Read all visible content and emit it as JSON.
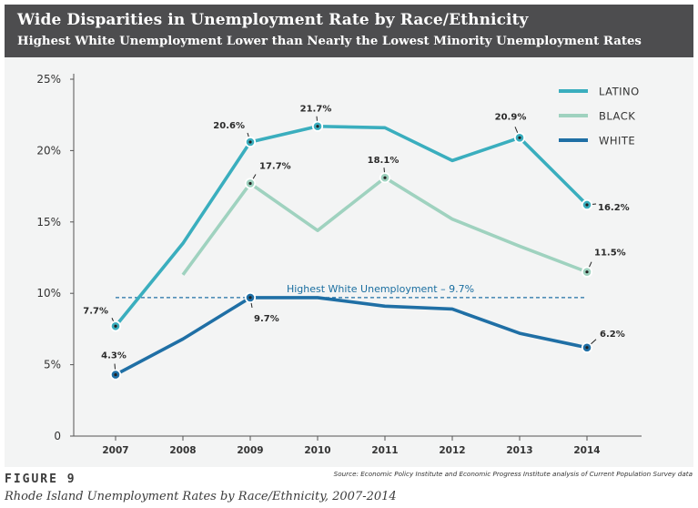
{
  "header": {
    "title": "Wide Disparities in Unemployment Rate by Race/Ethnicity",
    "subtitle": "Highest White Unemployment Lower than Nearly the Lowest Minority Unemployment Rates"
  },
  "source": "Source: Economic Policy Institute and Economic Progress Institute analysis of Current Population Survey data",
  "figure": {
    "label": "FIGURE 9",
    "caption": "Rhode Island Unemployment Rates by Race/Ethnicity, 2007-2014"
  },
  "chart_data": {
    "type": "line",
    "categories": [
      "2007",
      "2008",
      "2009",
      "2010",
      "2011",
      "2012",
      "2013",
      "2014"
    ],
    "ylim": [
      0,
      25
    ],
    "yticks": [
      0,
      5,
      10,
      15,
      20,
      25
    ],
    "ytick_labels": [
      "0",
      "5%",
      "10%",
      "15%",
      "20%",
      "25%"
    ],
    "grid": false,
    "legend_position": "top-right",
    "series": [
      {
        "name": "LATINO",
        "color": "#3aaebe",
        "values": [
          7.7,
          13.5,
          20.6,
          21.7,
          21.6,
          19.3,
          20.9,
          16.2
        ],
        "labeled": [
          true,
          false,
          true,
          true,
          false,
          false,
          true,
          true
        ],
        "labels": [
          "7.7%",
          "",
          "20.6%",
          "21.7%",
          "",
          "",
          "20.9%",
          "16.2%"
        ]
      },
      {
        "name": "BLACK",
        "color": "#9fd2bf",
        "values": [
          null,
          11.3,
          17.7,
          14.4,
          18.1,
          15.2,
          13.3,
          11.5
        ],
        "labeled": [
          false,
          false,
          true,
          false,
          true,
          false,
          false,
          true
        ],
        "labels": [
          "",
          "",
          "17.7%",
          "",
          "18.1%",
          "",
          "",
          "11.5%"
        ]
      },
      {
        "name": "WHITE",
        "color": "#1f6fa5",
        "values": [
          4.3,
          6.8,
          9.7,
          9.7,
          9.1,
          8.9,
          7.2,
          6.2
        ],
        "labeled": [
          true,
          false,
          true,
          false,
          false,
          false,
          false,
          true
        ],
        "labels": [
          "4.3%",
          "",
          "9.7%",
          "",
          "",
          "",
          "",
          "6.2%"
        ]
      }
    ],
    "reference_line": {
      "value": 9.7,
      "label": "Highest White Unemployment – 9.7%",
      "color": "#1f6fa5"
    }
  }
}
